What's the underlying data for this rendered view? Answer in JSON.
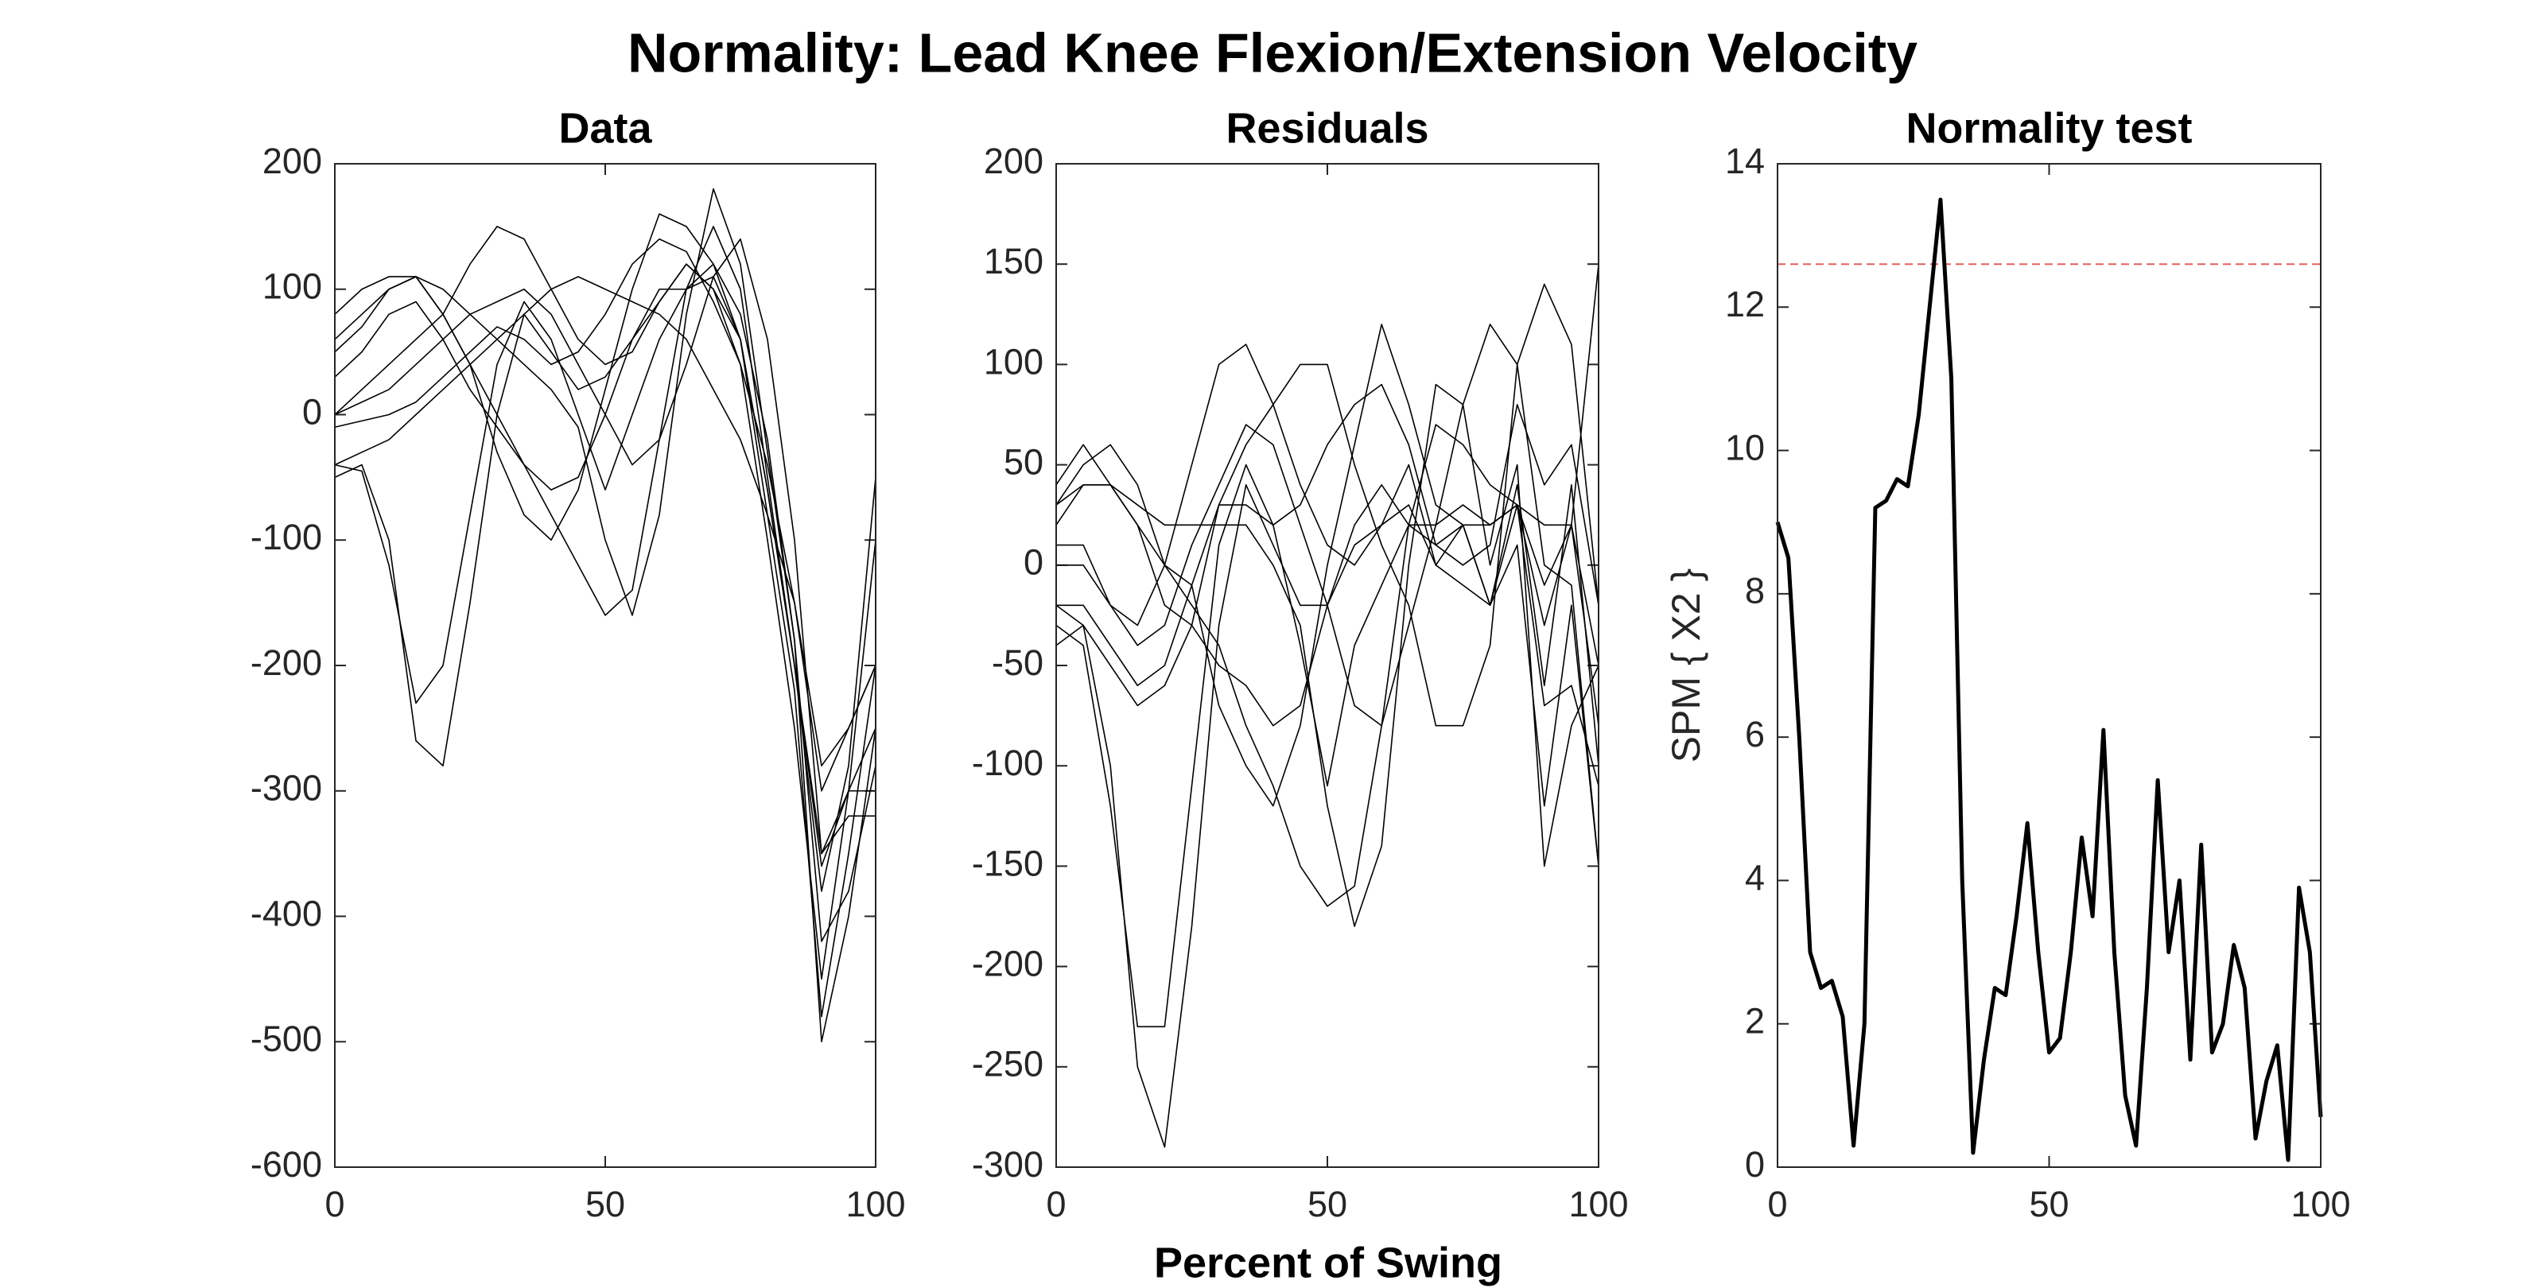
{
  "title": "Normality: Lead Knee Flexion/Extension Velocity",
  "xlabel": "Percent of Swing",
  "chart_data": [
    {
      "type": "line",
      "title": "Data",
      "color": "#000000",
      "x": [
        0,
        5,
        10,
        15,
        20,
        25,
        30,
        35,
        40,
        45,
        50,
        55,
        60,
        65,
        70,
        75,
        80,
        85,
        90,
        95,
        100
      ],
      "xlim": [
        0,
        100
      ],
      "xticks": [
        0,
        50,
        100
      ],
      "ylim": [
        -600,
        200
      ],
      "yticks": [
        -600,
        -500,
        -400,
        -300,
        -200,
        -100,
        0,
        100,
        200
      ],
      "series": [
        {
          "values": [
            -50,
            -40,
            -100,
            -260,
            -280,
            -150,
            0,
            80,
            50,
            20,
            30,
            60,
            90,
            120,
            100,
            40,
            -100,
            -250,
            -450,
            -300,
            -100
          ]
        },
        {
          "values": [
            -40,
            -45,
            -120,
            -230,
            -200,
            -80,
            40,
            90,
            60,
            0,
            -60,
            0,
            60,
            100,
            110,
            60,
            -80,
            -220,
            -480,
            -350,
            -200
          ]
        },
        {
          "values": [
            80,
            100,
            110,
            110,
            80,
            40,
            0,
            -40,
            -80,
            -120,
            -160,
            -140,
            -20,
            100,
            150,
            100,
            -50,
            -200,
            -350,
            -300,
            -250
          ]
        },
        {
          "values": [
            50,
            70,
            100,
            110,
            100,
            80,
            60,
            40,
            20,
            -10,
            -100,
            -160,
            -80,
            80,
            180,
            120,
            -30,
            -180,
            -500,
            -400,
            -250
          ]
        },
        {
          "values": [
            0,
            20,
            40,
            60,
            80,
            120,
            150,
            140,
            100,
            60,
            40,
            50,
            90,
            120,
            100,
            60,
            -60,
            -200,
            -360,
            -300,
            -300
          ]
        },
        {
          "values": [
            -10,
            -5,
            0,
            10,
            30,
            50,
            70,
            60,
            40,
            50,
            80,
            120,
            140,
            130,
            90,
            40,
            -40,
            -150,
            -300,
            -250,
            -200
          ]
        },
        {
          "values": [
            30,
            50,
            80,
            90,
            60,
            20,
            -10,
            -40,
            -60,
            -50,
            0,
            60,
            100,
            100,
            120,
            80,
            -20,
            -180,
            -420,
            -380,
            -280
          ]
        },
        {
          "values": [
            0,
            10,
            20,
            40,
            60,
            80,
            90,
            100,
            80,
            40,
            0,
            -40,
            -20,
            40,
            110,
            140,
            60,
            -100,
            -350,
            -320,
            -320
          ]
        },
        {
          "values": [
            -40,
            -30,
            -20,
            0,
            20,
            40,
            60,
            80,
            100,
            110,
            100,
            90,
            80,
            60,
            20,
            -20,
            -80,
            -150,
            -280,
            -250,
            -200
          ]
        },
        {
          "values": [
            60,
            80,
            100,
            110,
            80,
            40,
            -30,
            -80,
            -100,
            -60,
            20,
            100,
            160,
            150,
            120,
            60,
            -60,
            -200,
            -380,
            -280,
            -50
          ]
        }
      ]
    },
    {
      "type": "line",
      "title": "Residuals",
      "color": "#000000",
      "x": [
        0,
        5,
        10,
        15,
        20,
        25,
        30,
        35,
        40,
        45,
        50,
        55,
        60,
        65,
        70,
        75,
        80,
        85,
        90,
        95,
        100
      ],
      "xlim": [
        0,
        100
      ],
      "xticks": [
        0,
        50,
        100
      ],
      "ylim": [
        -300,
        200
      ],
      "yticks": [
        -300,
        -250,
        -200,
        -150,
        -100,
        -50,
        0,
        50,
        100,
        150,
        200
      ],
      "series": [
        {
          "values": [
            -20,
            -30,
            -100,
            -250,
            -290,
            -180,
            -30,
            40,
            10,
            -20,
            -20,
            10,
            20,
            30,
            0,
            -10,
            -20,
            40,
            -60,
            40,
            -100
          ]
        },
        {
          "values": [
            -30,
            -40,
            -120,
            -230,
            -230,
            -110,
            10,
            50,
            20,
            -40,
            -110,
            -40,
            -10,
            20,
            10,
            20,
            -20,
            10,
            -120,
            -20,
            -150
          ]
        },
        {
          "values": [
            40,
            60,
            40,
            20,
            0,
            -20,
            -40,
            -80,
            -110,
            -150,
            -170,
            -160,
            -80,
            20,
            70,
            60,
            40,
            30,
            20,
            20,
            -50
          ]
        },
        {
          "values": [
            20,
            40,
            40,
            30,
            20,
            20,
            20,
            20,
            0,
            -30,
            -120,
            -180,
            -140,
            0,
            90,
            80,
            0,
            50,
            -150,
            -80,
            -50
          ]
        },
        {
          "values": [
            10,
            10,
            -20,
            -30,
            0,
            50,
            100,
            110,
            80,
            40,
            10,
            0,
            20,
            50,
            0,
            20,
            -20,
            30,
            -10,
            20,
            -80
          ]
        },
        {
          "values": [
            -20,
            -20,
            -40,
            -60,
            -50,
            -10,
            30,
            30,
            20,
            30,
            60,
            80,
            90,
            60,
            10,
            0,
            10,
            80,
            40,
            60,
            -20
          ]
        },
        {
          "values": [
            30,
            40,
            40,
            20,
            -20,
            -30,
            -50,
            -60,
            -80,
            -70,
            -20,
            20,
            40,
            20,
            20,
            30,
            20,
            30,
            -70,
            -60,
            -110
          ]
        },
        {
          "values": [
            0,
            0,
            -20,
            -40,
            -30,
            10,
            40,
            70,
            60,
            20,
            -20,
            -70,
            -80,
            -30,
            20,
            80,
            120,
            100,
            0,
            -10,
            -150
          ]
        },
        {
          "values": [
            -40,
            -30,
            -50,
            -70,
            -60,
            -30,
            30,
            60,
            80,
            100,
            100,
            50,
            10,
            -20,
            -80,
            -80,
            -40,
            100,
            140,
            110,
            -20
          ]
        },
        {
          "values": [
            30,
            50,
            60,
            40,
            0,
            -10,
            -70,
            -100,
            -120,
            -80,
            0,
            60,
            120,
            80,
            30,
            20,
            20,
            30,
            -30,
            20,
            150
          ]
        }
      ]
    },
    {
      "type": "line",
      "title": "Normality test",
      "color": "#000000",
      "ylabel": "SPM { X2 }",
      "threshold": 12.6,
      "threshold_color": "#e06060",
      "x": [
        0,
        2,
        4,
        6,
        8,
        10,
        12,
        14,
        16,
        18,
        20,
        22,
        24,
        26,
        28,
        30,
        32,
        34,
        36,
        38,
        40,
        42,
        44,
        46,
        48,
        50,
        52,
        54,
        56,
        58,
        60,
        62,
        64,
        66,
        68,
        70,
        72,
        74,
        76,
        78,
        80,
        82,
        84,
        86,
        88,
        90,
        92,
        94,
        96,
        98,
        100
      ],
      "xlim": [
        0,
        100
      ],
      "xticks": [
        0,
        50,
        100
      ],
      "ylim": [
        0,
        14
      ],
      "yticks": [
        0,
        2,
        4,
        6,
        8,
        10,
        12,
        14
      ],
      "series": [
        {
          "values": [
            9,
            8.5,
            6,
            3,
            2.5,
            2.6,
            2.1,
            0.3,
            2,
            9.2,
            9.3,
            9.6,
            9.5,
            10.5,
            12,
            13.5,
            11,
            4,
            0.2,
            1.5,
            2.5,
            2.4,
            3.5,
            4.8,
            3,
            1.6,
            1.8,
            3,
            4.6,
            3.5,
            6.1,
            3,
            1,
            0.3,
            2.5,
            5.4,
            3,
            4,
            1.5,
            4.5,
            1.6,
            2,
            3.1,
            2.5,
            0.4,
            1.2,
            1.7,
            0.1,
            3.9,
            3,
            0.7
          ]
        }
      ]
    }
  ]
}
